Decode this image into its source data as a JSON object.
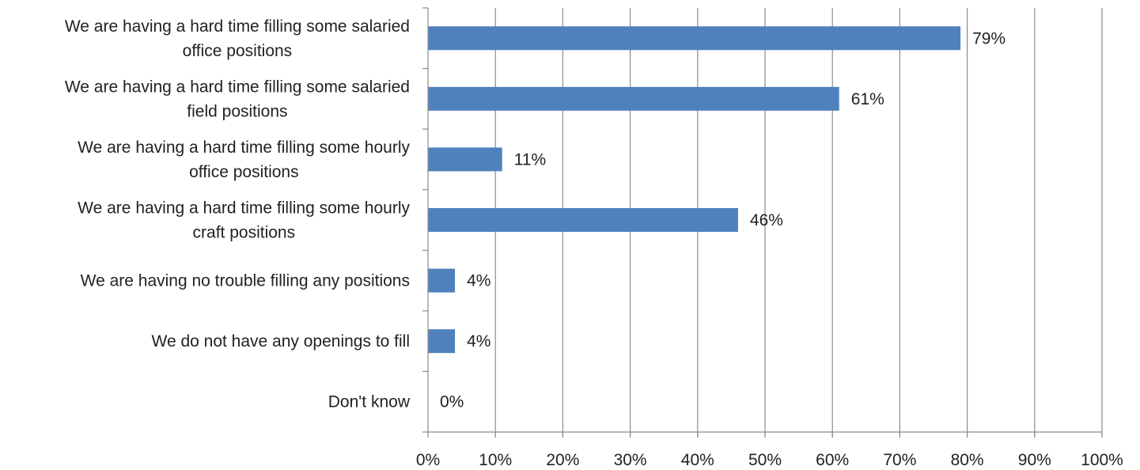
{
  "chart_data": {
    "type": "bar",
    "orientation": "horizontal",
    "categories": [
      [
        "We are having a hard time filling some salaried",
        "office positions"
      ],
      [
        "We are having a hard time filling some salaried",
        "field positions"
      ],
      [
        "We are having a hard time filling some hourly",
        "office positions"
      ],
      [
        "We are having a hard time filling some hourly",
        "craft positions"
      ],
      [
        "We are having no trouble filling any positions"
      ],
      [
        "We do not have any openings to fill"
      ],
      [
        "Don't know"
      ]
    ],
    "values": [
      79,
      61,
      11,
      46,
      4,
      4,
      0
    ],
    "data_labels": [
      "79%",
      "61%",
      "11%",
      "46%",
      "4%",
      "4%",
      "0%"
    ],
    "xlim": [
      0,
      100
    ],
    "x_ticks": [
      0,
      10,
      20,
      30,
      40,
      50,
      60,
      70,
      80,
      90,
      100
    ],
    "x_tick_labels": [
      "0%",
      "10%",
      "20%",
      "30%",
      "40%",
      "50%",
      "60%",
      "70%",
      "80%",
      "90%",
      "100%"
    ],
    "title": "",
    "xlabel": "",
    "ylabel": "",
    "grid": "vertical",
    "legend": "none",
    "colors": {
      "bar": "#4f81bd",
      "grid": "#8c8c8c",
      "axis": "#8c8c8c",
      "text": "#222222"
    }
  }
}
